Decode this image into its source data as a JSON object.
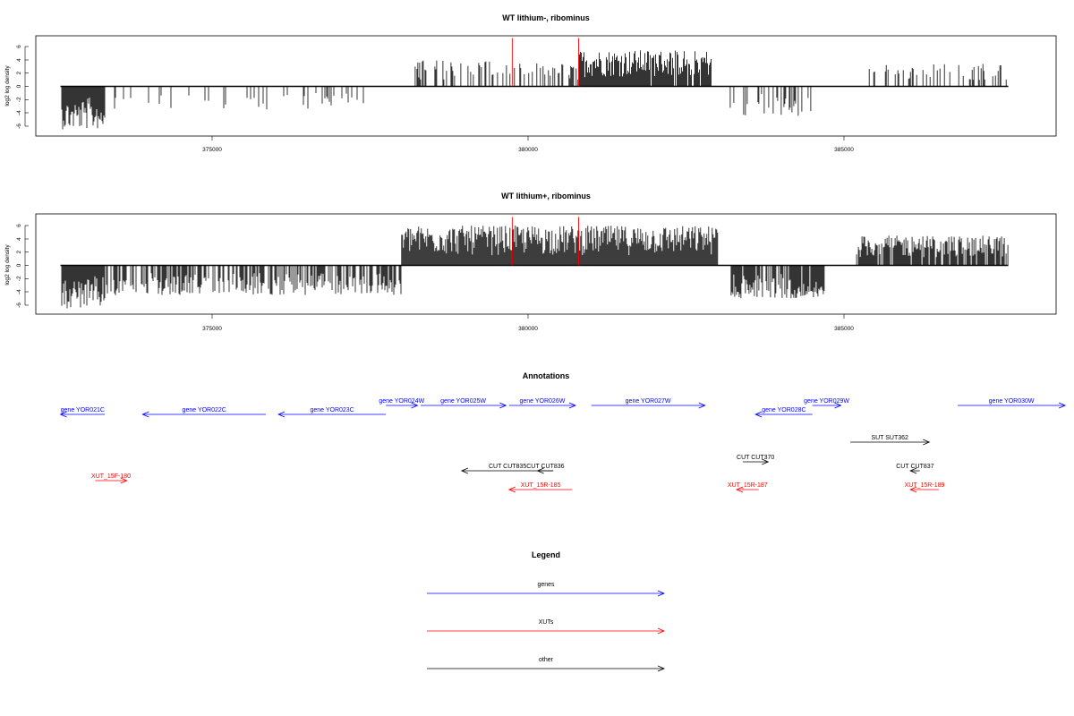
{
  "panels": [
    {
      "title": "WT lithium-, ribominus",
      "ylabel": "log2 log density",
      "yticks": [
        "-6",
        "-4",
        "-2",
        "0",
        "2",
        "4",
        "6"
      ],
      "xticks": [
        "375000",
        "380000",
        "385000"
      ]
    },
    {
      "title": "WT lithium+, ribominus",
      "ylabel": "log2 log density",
      "yticks": [
        "-6",
        "-4",
        "-2",
        "0",
        "2",
        "4",
        "6"
      ],
      "xticks": [
        "375000",
        "380000",
        "385000"
      ]
    }
  ],
  "chart_data": [
    {
      "type": "bar",
      "title": "WT lithium-, ribominus",
      "ylabel": "log2 log density",
      "xlim": [
        372000,
        388500
      ],
      "ylim": [
        -7.5,
        7.5
      ],
      "xticks": [
        375000,
        380000,
        385000
      ],
      "yticks": [
        -6,
        -4,
        -2,
        0,
        2,
        4,
        6
      ],
      "baseline_x": [
        372600,
        387600
      ],
      "red_markers_x": [
        379750,
        380800
      ],
      "segments": [
        {
          "x_start": 372620,
          "x_end": 373300,
          "sign": -1,
          "max": 6.5,
          "density": 1.0
        },
        {
          "x_start": 373400,
          "x_end": 377600,
          "sign": -1,
          "max": 3.5,
          "density": 0.12
        },
        {
          "x_start": 378100,
          "x_end": 379700,
          "sign": 1,
          "max": 4.0,
          "density": 0.3
        },
        {
          "x_start": 379700,
          "x_end": 380800,
          "sign": 1,
          "max": 3.5,
          "density": 0.4
        },
        {
          "x_start": 380800,
          "x_end": 382900,
          "sign": 1,
          "max": 5.5,
          "density": 0.95
        },
        {
          "x_start": 383200,
          "x_end": 384500,
          "sign": -1,
          "max": 4.5,
          "density": 0.3
        },
        {
          "x_start": 385400,
          "x_end": 387600,
          "sign": 1,
          "max": 3.5,
          "density": 0.2
        }
      ]
    },
    {
      "type": "bar",
      "title": "WT lithium+, ribominus",
      "ylabel": "log2 log density",
      "xlim": [
        372000,
        388500
      ],
      "ylim": [
        -7.5,
        7.5
      ],
      "xticks": [
        375000,
        380000,
        385000
      ],
      "yticks": [
        -6,
        -4,
        -2,
        0,
        2,
        4,
        6
      ],
      "baseline_x": [
        372600,
        387600
      ],
      "red_markers_x": [
        379750,
        380800
      ],
      "segments": [
        {
          "x_start": 372620,
          "x_end": 373300,
          "sign": -1,
          "max": 6.5,
          "density": 1.0
        },
        {
          "x_start": 373300,
          "x_end": 378000,
          "sign": -1,
          "max": 4.5,
          "density": 0.6
        },
        {
          "x_start": 378000,
          "x_end": 383000,
          "sign": 1,
          "max": 6.0,
          "density": 1.0
        },
        {
          "x_start": 383200,
          "x_end": 384700,
          "sign": -1,
          "max": 5.0,
          "density": 0.85
        },
        {
          "x_start": 385200,
          "x_end": 387600,
          "sign": 1,
          "max": 4.5,
          "density": 0.85
        }
      ]
    }
  ],
  "annotations": {
    "title": "Annotations",
    "items": [
      {
        "label": "gene YOR021C",
        "x_start": 372600,
        "x_end": 373300,
        "strand": "-",
        "row": 2,
        "color": "#0000ff"
      },
      {
        "label": "gene YOR022C",
        "x_start": 373900,
        "x_end": 375850,
        "strand": "-",
        "row": 2,
        "color": "#0000ff"
      },
      {
        "label": "gene YOR023C",
        "x_start": 376050,
        "x_end": 377750,
        "strand": "-",
        "row": 2,
        "color": "#0000ff"
      },
      {
        "label": "gene YOR024W",
        "x_start": 377750,
        "x_end": 378250,
        "strand": "+",
        "row": 1,
        "color": "#0000ff"
      },
      {
        "label": "gene YOR025W",
        "x_start": 378300,
        "x_end": 379650,
        "strand": "+",
        "row": 1,
        "color": "#0000ff"
      },
      {
        "label": "gene YOR026W",
        "x_start": 379700,
        "x_end": 380750,
        "strand": "+",
        "row": 1,
        "color": "#0000ff"
      },
      {
        "label": "gene YOR027W",
        "x_start": 381000,
        "x_end": 382800,
        "strand": "+",
        "row": 1,
        "color": "#0000ff"
      },
      {
        "label": "gene YOR028C",
        "x_start": 383600,
        "x_end": 384500,
        "strand": "-",
        "row": 2,
        "color": "#0000ff"
      },
      {
        "label": "gene YOR029W",
        "x_start": 384500,
        "x_end": 384950,
        "strand": "+",
        "row": 1,
        "color": "#0000ff"
      },
      {
        "label": "gene YOR030W",
        "x_start": 386800,
        "x_end": 388500,
        "strand": "+",
        "row": 1,
        "color": "#0000ff"
      },
      {
        "label": "SUT SUT362",
        "x_start": 385100,
        "x_end": 386350,
        "strand": "+",
        "row": 3,
        "color": "#000000"
      },
      {
        "label": "CUT CUT835",
        "x_start": 378950,
        "x_end": 380400,
        "strand": "-",
        "row": 4,
        "color": "#000000"
      },
      {
        "label": "CUT CUT836",
        "x_start": 380150,
        "x_end": 380400,
        "strand": "-",
        "row": 4,
        "color": "#000000"
      },
      {
        "label": "CUT CUT370",
        "x_start": 383400,
        "x_end": 383800,
        "strand": "+",
        "row": 5,
        "color": "#000000"
      },
      {
        "label": "CUT CUT837",
        "x_start": 386050,
        "x_end": 386200,
        "strand": "-",
        "row": 4,
        "color": "#000000"
      },
      {
        "label": "XUT_15F-180",
        "x_start": 373150,
        "x_end": 373650,
        "strand": "+",
        "row": 6,
        "color": "#ff0000"
      },
      {
        "label": "XUT_15R-185",
        "x_start": 379700,
        "x_end": 380700,
        "strand": "-",
        "row": 7,
        "color": "#ff0000"
      },
      {
        "label": "XUT_15R-187",
        "x_start": 383300,
        "x_end": 383650,
        "strand": "-",
        "row": 7,
        "color": "#ff0000"
      },
      {
        "label": "XUT_15R-189",
        "x_start": 386050,
        "x_end": 386500,
        "strand": "-",
        "row": 7,
        "color": "#ff0000"
      }
    ]
  },
  "legend": {
    "title": "Legend",
    "items": [
      {
        "label": "genes",
        "color": "#0000ff"
      },
      {
        "label": "XUTs",
        "color": "#ff0000"
      },
      {
        "label": "other",
        "color": "#000000"
      }
    ]
  }
}
